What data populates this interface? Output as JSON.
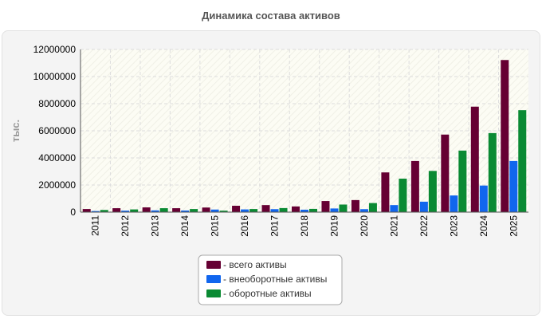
{
  "chart_data": {
    "type": "bar",
    "title": "Динамика состава активов",
    "ylabel": "тыс.",
    "xlabel": "",
    "ylim": [
      0,
      12000000
    ],
    "y_ticks": [
      0,
      2000000,
      4000000,
      6000000,
      8000000,
      10000000,
      12000000
    ],
    "grid": true,
    "legend_position": "bottom",
    "categories": [
      "2011",
      "2012",
      "2013",
      "2014",
      "2015",
      "2016",
      "2017",
      "2018",
      "2019",
      "2020",
      "2021",
      "2022",
      "2023",
      "2024",
      "2025"
    ],
    "series": [
      {
        "name": "- всего активы",
        "color": "#660033",
        "values": [
          230000,
          290000,
          350000,
          290000,
          340000,
          470000,
          520000,
          420000,
          820000,
          890000,
          2930000,
          3770000,
          5720000,
          7780000,
          11220000
        ]
      },
      {
        "name": "- внеоборотные активы",
        "color": "#1166ee",
        "values": [
          80000,
          110000,
          130000,
          120000,
          190000,
          200000,
          220000,
          180000,
          270000,
          220000,
          520000,
          770000,
          1230000,
          1960000,
          3770000
        ]
      },
      {
        "name": "- оборотные активы",
        "color": "#0a8a33",
        "values": [
          160000,
          200000,
          290000,
          230000,
          110000,
          230000,
          300000,
          240000,
          560000,
          670000,
          2470000,
          3040000,
          4540000,
          5830000,
          7520000
        ]
      }
    ]
  }
}
